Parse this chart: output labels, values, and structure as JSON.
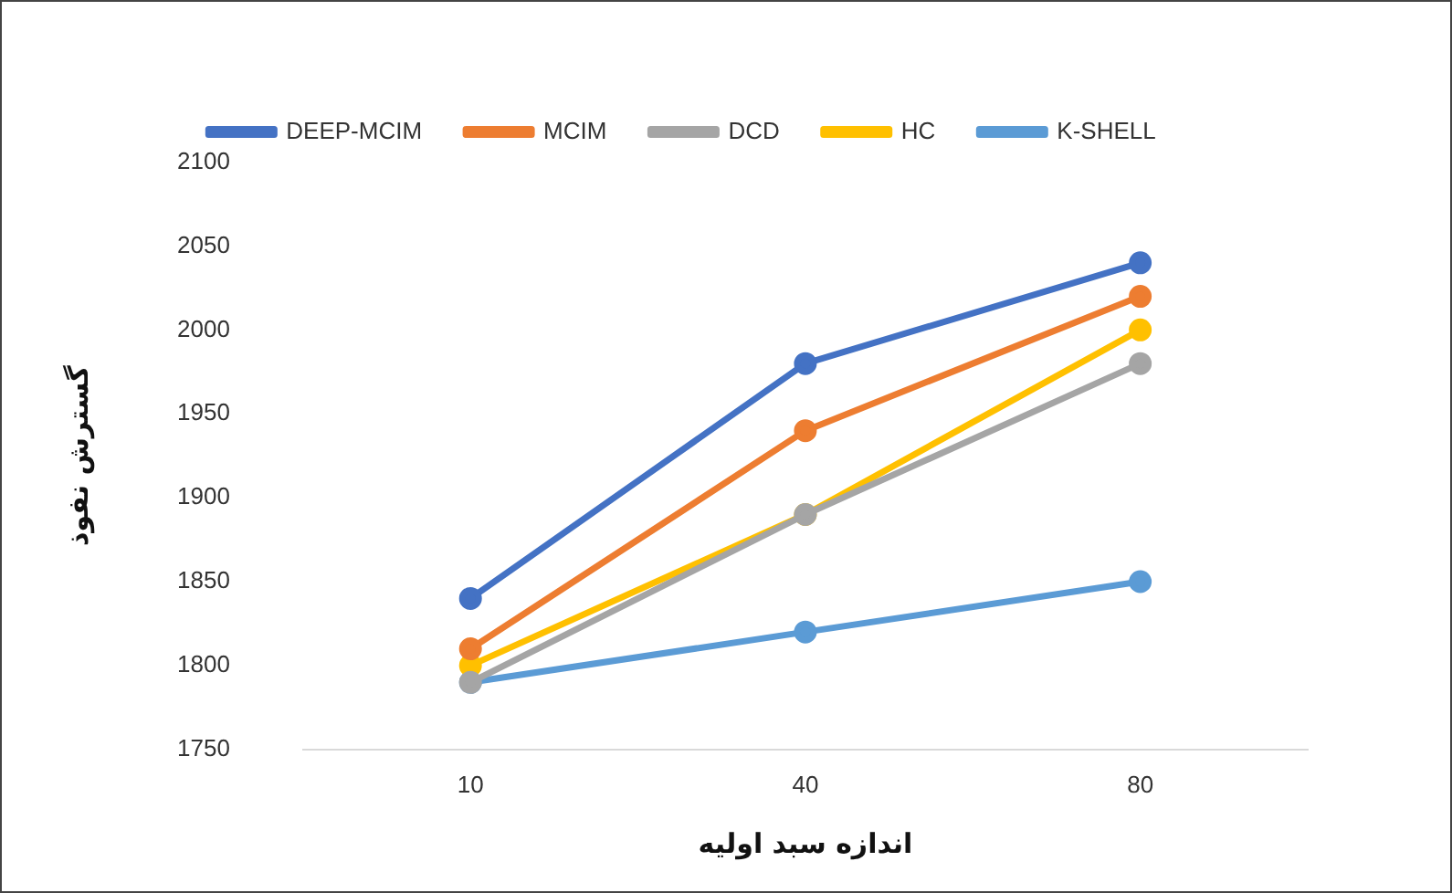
{
  "chart_data": {
    "type": "line",
    "xlabel": "اندازه سبد اولیه",
    "ylabel": "گسترش نفوذ",
    "categories": [
      "10",
      "40",
      "80"
    ],
    "series": [
      {
        "name": "DEEP-MCIM",
        "color": "#4472c4",
        "values": [
          1840,
          1980,
          2040
        ]
      },
      {
        "name": "MCIM",
        "color": "#ed7d31",
        "values": [
          1810,
          1940,
          2020
        ]
      },
      {
        "name": "DCD",
        "color": "#a5a5a5",
        "values": [
          1790,
          1890,
          1980
        ]
      },
      {
        "name": "HC",
        "color": "#ffc000",
        "values": [
          1800,
          1890,
          2000
        ]
      },
      {
        "name": "K-SHELL",
        "color": "#5b9bd5",
        "values": [
          1790,
          1820,
          1850
        ]
      }
    ],
    "ylim": [
      1750,
      2100
    ],
    "yticks": [
      1750,
      1800,
      1850,
      1900,
      1950,
      2000,
      2050,
      2100
    ],
    "grid": false,
    "legend": "top",
    "marker": "circle",
    "line_style": "solid"
  }
}
